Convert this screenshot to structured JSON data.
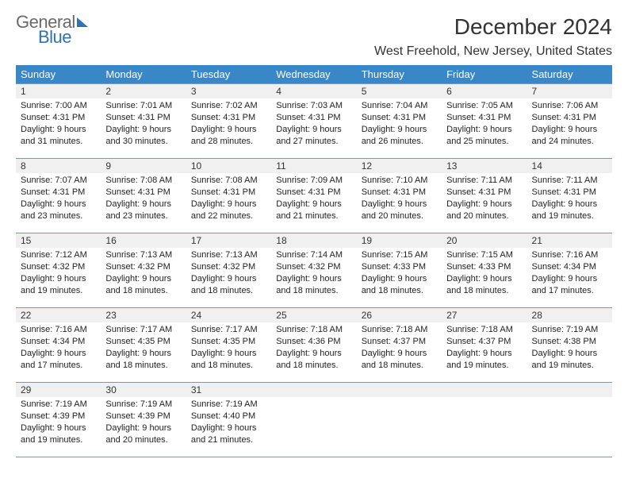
{
  "logo": {
    "line1": "General",
    "line2": "Blue"
  },
  "header": {
    "title": "December 2024",
    "location": "West Freehold, New Jersey, United States"
  },
  "colors": {
    "header_bg": "#3a87c8",
    "header_text": "#ffffff",
    "row_border": "#7a99b8",
    "daynum_bg": "#f0f0f0",
    "logo_gray": "#6a6a6a",
    "logo_blue": "#2e72b5"
  },
  "weekdays": [
    "Sunday",
    "Monday",
    "Tuesday",
    "Wednesday",
    "Thursday",
    "Friday",
    "Saturday"
  ],
  "weeks": [
    [
      {
        "n": "1",
        "sr": "7:00 AM",
        "ss": "4:31 PM",
        "dl": "9 hours and 31 minutes."
      },
      {
        "n": "2",
        "sr": "7:01 AM",
        "ss": "4:31 PM",
        "dl": "9 hours and 30 minutes."
      },
      {
        "n": "3",
        "sr": "7:02 AM",
        "ss": "4:31 PM",
        "dl": "9 hours and 28 minutes."
      },
      {
        "n": "4",
        "sr": "7:03 AM",
        "ss": "4:31 PM",
        "dl": "9 hours and 27 minutes."
      },
      {
        "n": "5",
        "sr": "7:04 AM",
        "ss": "4:31 PM",
        "dl": "9 hours and 26 minutes."
      },
      {
        "n": "6",
        "sr": "7:05 AM",
        "ss": "4:31 PM",
        "dl": "9 hours and 25 minutes."
      },
      {
        "n": "7",
        "sr": "7:06 AM",
        "ss": "4:31 PM",
        "dl": "9 hours and 24 minutes."
      }
    ],
    [
      {
        "n": "8",
        "sr": "7:07 AM",
        "ss": "4:31 PM",
        "dl": "9 hours and 23 minutes."
      },
      {
        "n": "9",
        "sr": "7:08 AM",
        "ss": "4:31 PM",
        "dl": "9 hours and 23 minutes."
      },
      {
        "n": "10",
        "sr": "7:08 AM",
        "ss": "4:31 PM",
        "dl": "9 hours and 22 minutes."
      },
      {
        "n": "11",
        "sr": "7:09 AM",
        "ss": "4:31 PM",
        "dl": "9 hours and 21 minutes."
      },
      {
        "n": "12",
        "sr": "7:10 AM",
        "ss": "4:31 PM",
        "dl": "9 hours and 20 minutes."
      },
      {
        "n": "13",
        "sr": "7:11 AM",
        "ss": "4:31 PM",
        "dl": "9 hours and 20 minutes."
      },
      {
        "n": "14",
        "sr": "7:11 AM",
        "ss": "4:31 PM",
        "dl": "9 hours and 19 minutes."
      }
    ],
    [
      {
        "n": "15",
        "sr": "7:12 AM",
        "ss": "4:32 PM",
        "dl": "9 hours and 19 minutes."
      },
      {
        "n": "16",
        "sr": "7:13 AM",
        "ss": "4:32 PM",
        "dl": "9 hours and 18 minutes."
      },
      {
        "n": "17",
        "sr": "7:13 AM",
        "ss": "4:32 PM",
        "dl": "9 hours and 18 minutes."
      },
      {
        "n": "18",
        "sr": "7:14 AM",
        "ss": "4:32 PM",
        "dl": "9 hours and 18 minutes."
      },
      {
        "n": "19",
        "sr": "7:15 AM",
        "ss": "4:33 PM",
        "dl": "9 hours and 18 minutes."
      },
      {
        "n": "20",
        "sr": "7:15 AM",
        "ss": "4:33 PM",
        "dl": "9 hours and 18 minutes."
      },
      {
        "n": "21",
        "sr": "7:16 AM",
        "ss": "4:34 PM",
        "dl": "9 hours and 17 minutes."
      }
    ],
    [
      {
        "n": "22",
        "sr": "7:16 AM",
        "ss": "4:34 PM",
        "dl": "9 hours and 17 minutes."
      },
      {
        "n": "23",
        "sr": "7:17 AM",
        "ss": "4:35 PM",
        "dl": "9 hours and 18 minutes."
      },
      {
        "n": "24",
        "sr": "7:17 AM",
        "ss": "4:35 PM",
        "dl": "9 hours and 18 minutes."
      },
      {
        "n": "25",
        "sr": "7:18 AM",
        "ss": "4:36 PM",
        "dl": "9 hours and 18 minutes."
      },
      {
        "n": "26",
        "sr": "7:18 AM",
        "ss": "4:37 PM",
        "dl": "9 hours and 18 minutes."
      },
      {
        "n": "27",
        "sr": "7:18 AM",
        "ss": "4:37 PM",
        "dl": "9 hours and 19 minutes."
      },
      {
        "n": "28",
        "sr": "7:19 AM",
        "ss": "4:38 PM",
        "dl": "9 hours and 19 minutes."
      }
    ],
    [
      {
        "n": "29",
        "sr": "7:19 AM",
        "ss": "4:39 PM",
        "dl": "9 hours and 19 minutes."
      },
      {
        "n": "30",
        "sr": "7:19 AM",
        "ss": "4:39 PM",
        "dl": "9 hours and 20 minutes."
      },
      {
        "n": "31",
        "sr": "7:19 AM",
        "ss": "4:40 PM",
        "dl": "9 hours and 21 minutes."
      },
      null,
      null,
      null,
      null
    ]
  ],
  "labels": {
    "sunrise": "Sunrise: ",
    "sunset": "Sunset: ",
    "daylight": "Daylight: "
  }
}
